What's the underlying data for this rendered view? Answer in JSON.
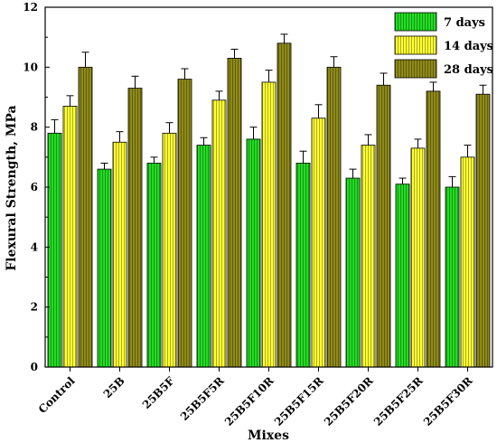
{
  "chart_data": {
    "type": "bar",
    "xlabel": "Mixes",
    "ylabel": "Flexural Strength, MPa",
    "ylim": [
      0,
      12
    ],
    "yticks": [
      0,
      2,
      4,
      6,
      8,
      10,
      12
    ],
    "grid": false,
    "legend_position": "top-right",
    "categories": [
      "Control",
      "25B",
      "25B5F",
      "25B5F5R",
      "25B5F10R",
      "25B5F15R",
      "25B5F20R",
      "25B5F25R",
      "25B5F30R"
    ],
    "series": [
      {
        "name": "7 days",
        "color": "#22dd22",
        "values": [
          7.8,
          6.6,
          6.8,
          7.4,
          7.6,
          6.8,
          6.3,
          6.1,
          6.0
        ],
        "errors": [
          0.45,
          0.2,
          0.2,
          0.25,
          0.4,
          0.4,
          0.3,
          0.2,
          0.35
        ]
      },
      {
        "name": "14 days",
        "color": "#ffff33",
        "values": [
          8.7,
          7.5,
          7.8,
          8.9,
          9.5,
          8.3,
          7.4,
          7.3,
          7.0
        ],
        "errors": [
          0.35,
          0.35,
          0.35,
          0.3,
          0.4,
          0.45,
          0.35,
          0.3,
          0.4
        ]
      },
      {
        "name": "28 days",
        "color": "#8f8a17",
        "values": [
          10.0,
          9.3,
          9.6,
          10.3,
          10.8,
          10.0,
          9.4,
          9.2,
          9.1
        ],
        "errors": [
          0.5,
          0.4,
          0.35,
          0.3,
          0.3,
          0.35,
          0.4,
          0.3,
          0.3
        ]
      }
    ]
  }
}
